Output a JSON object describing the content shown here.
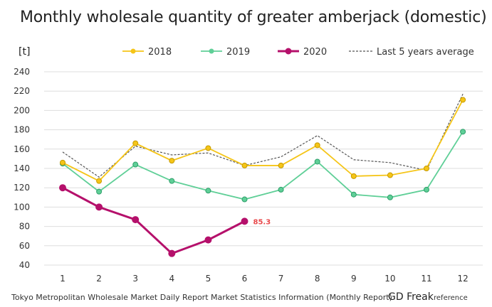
{
  "chart_data": {
    "type": "line",
    "title": "Monthly wholesale quantity of greater amberjack (domestic)",
    "ylabel": "[t]",
    "xlabel": "",
    "categories": [
      "1",
      "2",
      "3",
      "4",
      "5",
      "6",
      "7",
      "8",
      "9",
      "10",
      "11",
      "12"
    ],
    "ylim": [
      40,
      240
    ],
    "yticks": [
      40,
      60,
      80,
      100,
      120,
      140,
      160,
      180,
      200,
      220,
      240
    ],
    "grid": "horizontal",
    "legend_position": "top",
    "series": [
      {
        "name": "2018",
        "color": "#f5c518",
        "marker": "circle",
        "dashed": false,
        "values": [
          146,
          127,
          166,
          148,
          161,
          143,
          143,
          164,
          132,
          133,
          140,
          211
        ]
      },
      {
        "name": "2019",
        "color": "#5fcf97",
        "marker": "circle",
        "dashed": false,
        "values": [
          145,
          116,
          144,
          127,
          117,
          108,
          118,
          147,
          113,
          110,
          118,
          178
        ]
      },
      {
        "name": "2020",
        "color": "#b5106b",
        "marker": "circle",
        "dashed": false,
        "values": [
          120,
          100,
          87,
          52,
          66,
          85.3,
          null,
          null,
          null,
          null,
          null,
          null
        ]
      },
      {
        "name": "Last 5 years average",
        "color": "#555555",
        "marker": "none",
        "dashed": true,
        "values": [
          157,
          131,
          163,
          154,
          156,
          143,
          152,
          174,
          149,
          146,
          138,
          217
        ]
      }
    ],
    "annotations": [
      {
        "series": "2020",
        "index": 5,
        "text": "85.3",
        "color": "#e8484a"
      }
    ]
  },
  "footer": {
    "source": "Tokyo Metropolitan Wholesale Market Daily Report Market Statistics Information (Monthly Report)",
    "brand": "GD Freak",
    "brand_note": "reference"
  }
}
